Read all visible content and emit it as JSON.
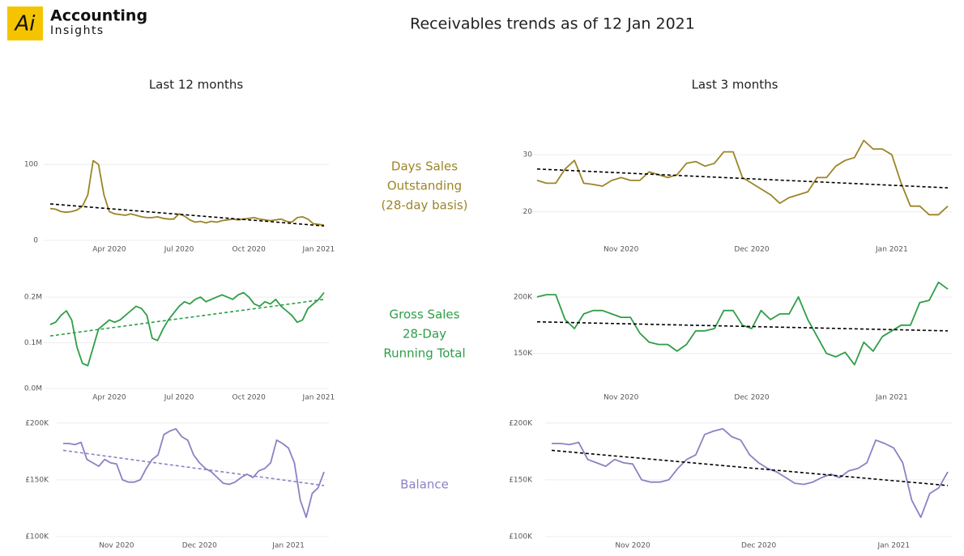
{
  "header": {
    "logo": "Ai",
    "brand": "Accounting",
    "brand_sub": "Insights",
    "title": "Receivables trends as of 12 Jan 2021"
  },
  "columns": [
    "Last 12 months",
    "Last 3 months"
  ],
  "row_labels": [
    {
      "lines": [
        "Days Sales",
        "Outstanding",
        "(28-day basis)"
      ],
      "color": "#9c8527"
    },
    {
      "lines": [
        "Gross Sales",
        "28-Day",
        "Running Total"
      ],
      "color": "#2e9e48"
    },
    {
      "lines": [
        "Balance"
      ],
      "color": "#8a82c4"
    }
  ],
  "chart_data": [
    {
      "type": "line",
      "color": "#9c8527",
      "trend_color": "#000000",
      "grid": true,
      "categories": [
        null,
        null,
        null,
        null,
        null,
        null,
        null,
        null,
        null,
        null,
        null,
        "Apr 2020",
        null,
        null,
        null,
        null,
        null,
        null,
        null,
        null,
        null,
        null,
        null,
        null,
        "Jul 2020",
        null,
        null,
        null,
        null,
        null,
        null,
        null,
        null,
        null,
        null,
        null,
        null,
        "Oct 2020",
        null,
        null,
        null,
        null,
        null,
        null,
        null,
        null,
        null,
        null,
        null,
        null,
        "Jan 2021",
        null
      ],
      "values": [
        42,
        41,
        38,
        37,
        38,
        40,
        45,
        60,
        105,
        100,
        60,
        38,
        35,
        34,
        33,
        35,
        33,
        31,
        30,
        30,
        31,
        29,
        28,
        28,
        35,
        32,
        27,
        24,
        25,
        23,
        25,
        24,
        26,
        27,
        28,
        27,
        28,
        29,
        30,
        28,
        27,
        26,
        27,
        28,
        25,
        24,
        30,
        31,
        28,
        22,
        21,
        20
      ],
      "trend": [
        48,
        19
      ],
      "ylim": [
        0,
        113
      ],
      "yticks": [
        0,
        100
      ]
    },
    {
      "type": "line",
      "color": "#9c8527",
      "trend_color": "#000000",
      "grid": true,
      "categories": [
        null,
        null,
        null,
        null,
        null,
        null,
        null,
        null,
        null,
        "Nov 2020",
        null,
        null,
        null,
        null,
        null,
        null,
        null,
        null,
        null,
        null,
        null,
        null,
        null,
        "Dec 2020",
        null,
        null,
        null,
        null,
        null,
        null,
        null,
        null,
        null,
        null,
        null,
        null,
        null,
        null,
        "Jan 2021",
        null,
        null,
        null,
        null,
        null,
        null
      ],
      "values": [
        25.5,
        25,
        25,
        27.5,
        29,
        25,
        24.8,
        24.5,
        25.5,
        26,
        25.5,
        25.5,
        27,
        26.5,
        26,
        26.5,
        28.5,
        28.8,
        28,
        28.5,
        30.5,
        30.5,
        26,
        25,
        24,
        23,
        21.5,
        22.5,
        23,
        23.5,
        26,
        26,
        28,
        29,
        29.5,
        32.5,
        31,
        31,
        30,
        25,
        21,
        21,
        19.5,
        19.5,
        21
      ],
      "trend": [
        27.5,
        24.2
      ],
      "ylim": [
        15,
        33
      ],
      "yticks": [
        20,
        30
      ]
    },
    {
      "type": "line",
      "color": "#2e9e48",
      "trend_color": "#2e9e48",
      "grid": true,
      "categories": [
        null,
        null,
        null,
        null,
        null,
        null,
        null,
        null,
        null,
        null,
        null,
        "Apr 2020",
        null,
        null,
        null,
        null,
        null,
        null,
        null,
        null,
        null,
        null,
        null,
        null,
        "Jul 2020",
        null,
        null,
        null,
        null,
        null,
        null,
        null,
        null,
        null,
        null,
        null,
        null,
        "Oct 2020",
        null,
        null,
        null,
        null,
        null,
        null,
        null,
        null,
        null,
        null,
        null,
        null,
        "Jan 2021",
        null
      ],
      "values": [
        140000,
        145000,
        160000,
        170000,
        150000,
        90000,
        55000,
        50000,
        90000,
        130000,
        140000,
        150000,
        145000,
        150000,
        160000,
        170000,
        180000,
        175000,
        160000,
        110000,
        105000,
        130000,
        150000,
        165000,
        180000,
        190000,
        185000,
        195000,
        200000,
        190000,
        195000,
        200000,
        205000,
        200000,
        195000,
        205000,
        210000,
        200000,
        185000,
        180000,
        190000,
        185000,
        195000,
        180000,
        170000,
        160000,
        145000,
        150000,
        175000,
        185000,
        195000,
        210000
      ],
      "trend": [
        115000,
        195000
      ],
      "ylim": [
        0,
        225000
      ],
      "yticks": [
        {
          "value": 0,
          "label": "0.0M"
        },
        {
          "value": 100000,
          "label": "0.1M"
        },
        {
          "value": 200000,
          "label": "0.2M"
        }
      ]
    },
    {
      "type": "line",
      "color": "#2e9e48",
      "trend_color": "#000000",
      "grid": true,
      "categories": [
        null,
        null,
        null,
        null,
        null,
        null,
        null,
        null,
        null,
        "Nov 2020",
        null,
        null,
        null,
        null,
        null,
        null,
        null,
        null,
        null,
        null,
        null,
        null,
        null,
        "Dec 2020",
        null,
        null,
        null,
        null,
        null,
        null,
        null,
        null,
        null,
        null,
        null,
        null,
        null,
        null,
        "Jan 2021",
        null,
        null,
        null,
        null,
        null,
        null
      ],
      "values": [
        200000,
        202000,
        202000,
        180000,
        172000,
        185000,
        188000,
        188000,
        185000,
        182000,
        182000,
        168000,
        160000,
        158000,
        158000,
        152000,
        158000,
        170000,
        170000,
        172000,
        188000,
        188000,
        175000,
        172000,
        188000,
        180000,
        185000,
        185000,
        200000,
        180000,
        165000,
        150000,
        147000,
        151000,
        140000,
        160000,
        152000,
        165000,
        170000,
        175000,
        175000,
        195000,
        197000,
        213000,
        207000
      ],
      "trend": [
        178000,
        170000
      ],
      "ylim": [
        119000,
        215000
      ],
      "yticks": [
        {
          "value": 150000,
          "label": "150K"
        },
        {
          "value": 200000,
          "label": "200K"
        }
      ]
    },
    {
      "type": "line",
      "color": "#8a82c4",
      "trend_color": "#8a82c4",
      "grid": true,
      "categories": [
        null,
        null,
        null,
        null,
        null,
        null,
        null,
        null,
        null,
        "Nov 2020",
        null,
        null,
        null,
        null,
        null,
        null,
        null,
        null,
        null,
        null,
        null,
        null,
        null,
        "Dec 2020",
        null,
        null,
        null,
        null,
        null,
        null,
        null,
        null,
        null,
        null,
        null,
        null,
        null,
        null,
        "Jan 2021",
        null,
        null,
        null,
        null,
        null,
        null
      ],
      "values": [
        182000,
        182000,
        181000,
        183000,
        168000,
        165000,
        162000,
        168000,
        165000,
        164000,
        150000,
        148000,
        148000,
        150000,
        160000,
        168000,
        172000,
        190000,
        193000,
        195000,
        188000,
        185000,
        172000,
        165000,
        160000,
        157000,
        152000,
        147000,
        146000,
        148000,
        152000,
        155000,
        152000,
        158000,
        160000,
        165000,
        185000,
        182000,
        178000,
        165000,
        132000,
        117000,
        138000,
        143000,
        157000
      ],
      "trend": [
        176000,
        145000
      ],
      "ylim": [
        100000,
        202000
      ],
      "yticks": [
        {
          "value": 100000,
          "label": "£100K"
        },
        {
          "value": 150000,
          "label": "£150K"
        },
        {
          "value": 200000,
          "label": "£200K"
        }
      ]
    },
    {
      "type": "line",
      "color": "#8a82c4",
      "trend_color": "#000000",
      "grid": true,
      "categories": [
        null,
        null,
        null,
        null,
        null,
        null,
        null,
        null,
        null,
        "Nov 2020",
        null,
        null,
        null,
        null,
        null,
        null,
        null,
        null,
        null,
        null,
        null,
        null,
        null,
        "Dec 2020",
        null,
        null,
        null,
        null,
        null,
        null,
        null,
        null,
        null,
        null,
        null,
        null,
        null,
        null,
        "Jan 2021",
        null,
        null,
        null,
        null,
        null,
        null
      ],
      "values": [
        182000,
        182000,
        181000,
        183000,
        168000,
        165000,
        162000,
        168000,
        165000,
        164000,
        150000,
        148000,
        148000,
        150000,
        160000,
        168000,
        172000,
        190000,
        193000,
        195000,
        188000,
        185000,
        172000,
        165000,
        160000,
        157000,
        152000,
        147000,
        146000,
        148000,
        152000,
        155000,
        152000,
        158000,
        160000,
        165000,
        185000,
        182000,
        178000,
        165000,
        132000,
        117000,
        138000,
        143000,
        157000
      ],
      "trend": [
        176000,
        145000
      ],
      "ylim": [
        100000,
        202000
      ],
      "yticks": [
        {
          "value": 100000,
          "label": "£100K"
        },
        {
          "value": 150000,
          "label": "£150K"
        },
        {
          "value": 200000,
          "label": "£200K"
        }
      ]
    }
  ]
}
